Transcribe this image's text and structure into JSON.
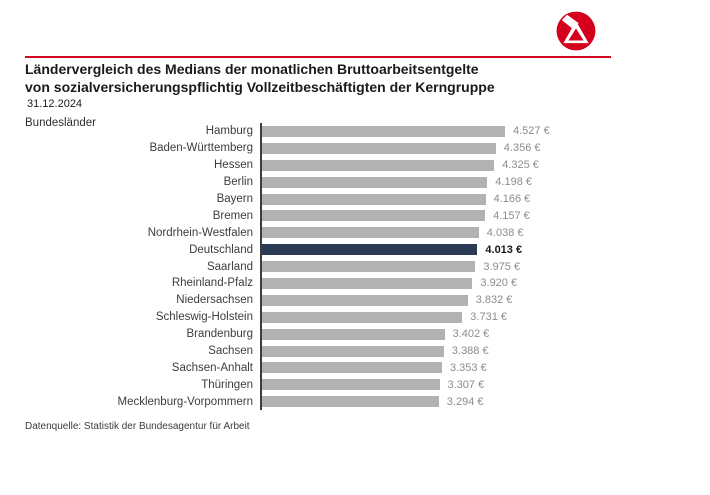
{
  "header": {
    "title_line1": "Ländervergleich des Medians der monatlichen Bruttoarbeitsentgelte",
    "title_line2": "von sozialversicherungspflichtig Vollzeitbeschäftigten der Kerngruppe",
    "date": "31.12.2024",
    "rule_color": "#cf0a1e",
    "logo_color": "#d5001c",
    "logo_name": "bundesagentur-fuer-arbeit-logo"
  },
  "chart": {
    "axis_title": "Bundesländer"
  },
  "chart_data": {
    "type": "bar",
    "orientation": "horizontal",
    "title": "Ländervergleich des Medians der monatlichen Bruttoarbeitsentgelte von sozialversicherungspflichtig Vollzeitbeschäftigten der Kerngruppe",
    "subtitle": "31.12.2024",
    "ylabel": "Bundesländer",
    "xlabel": "",
    "xlim": [
      0,
      4527
    ],
    "grid": false,
    "legend": "none",
    "categories": [
      "Hamburg",
      "Baden-Württemberg",
      "Hessen",
      "Berlin",
      "Bayern",
      "Bremen",
      "Nordrhein-Westfalen",
      "Deutschland",
      "Saarland",
      "Rheinland-Pfalz",
      "Niedersachsen",
      "Schleswig-Holstein",
      "Brandenburg",
      "Sachsen",
      "Sachsen-Anhalt",
      "Thüringen",
      "Mecklenburg-Vorpommern"
    ],
    "values": [
      4527,
      4356,
      4325,
      4198,
      4166,
      4157,
      4038,
      4013,
      3975,
      3920,
      3832,
      3731,
      3402,
      3388,
      3353,
      3307,
      3294
    ],
    "value_labels": [
      "4.527 €",
      "4.356 €",
      "4.325 €",
      "4.198 €",
      "4.166 €",
      "4.157 €",
      "4.038 €",
      "4.013 €",
      "3.975 €",
      "3.920 €",
      "3.832 €",
      "3.731 €",
      "3.402 €",
      "3.388 €",
      "3.353 €",
      "3.307 €",
      "3.294 €"
    ],
    "highlight_category": "Deutschland",
    "bar_color": "#b2b2b2",
    "highlight_color": "#2b3a55"
  },
  "footer": {
    "source": "Datenquelle: Statistik der Bundesagentur für Arbeit"
  }
}
